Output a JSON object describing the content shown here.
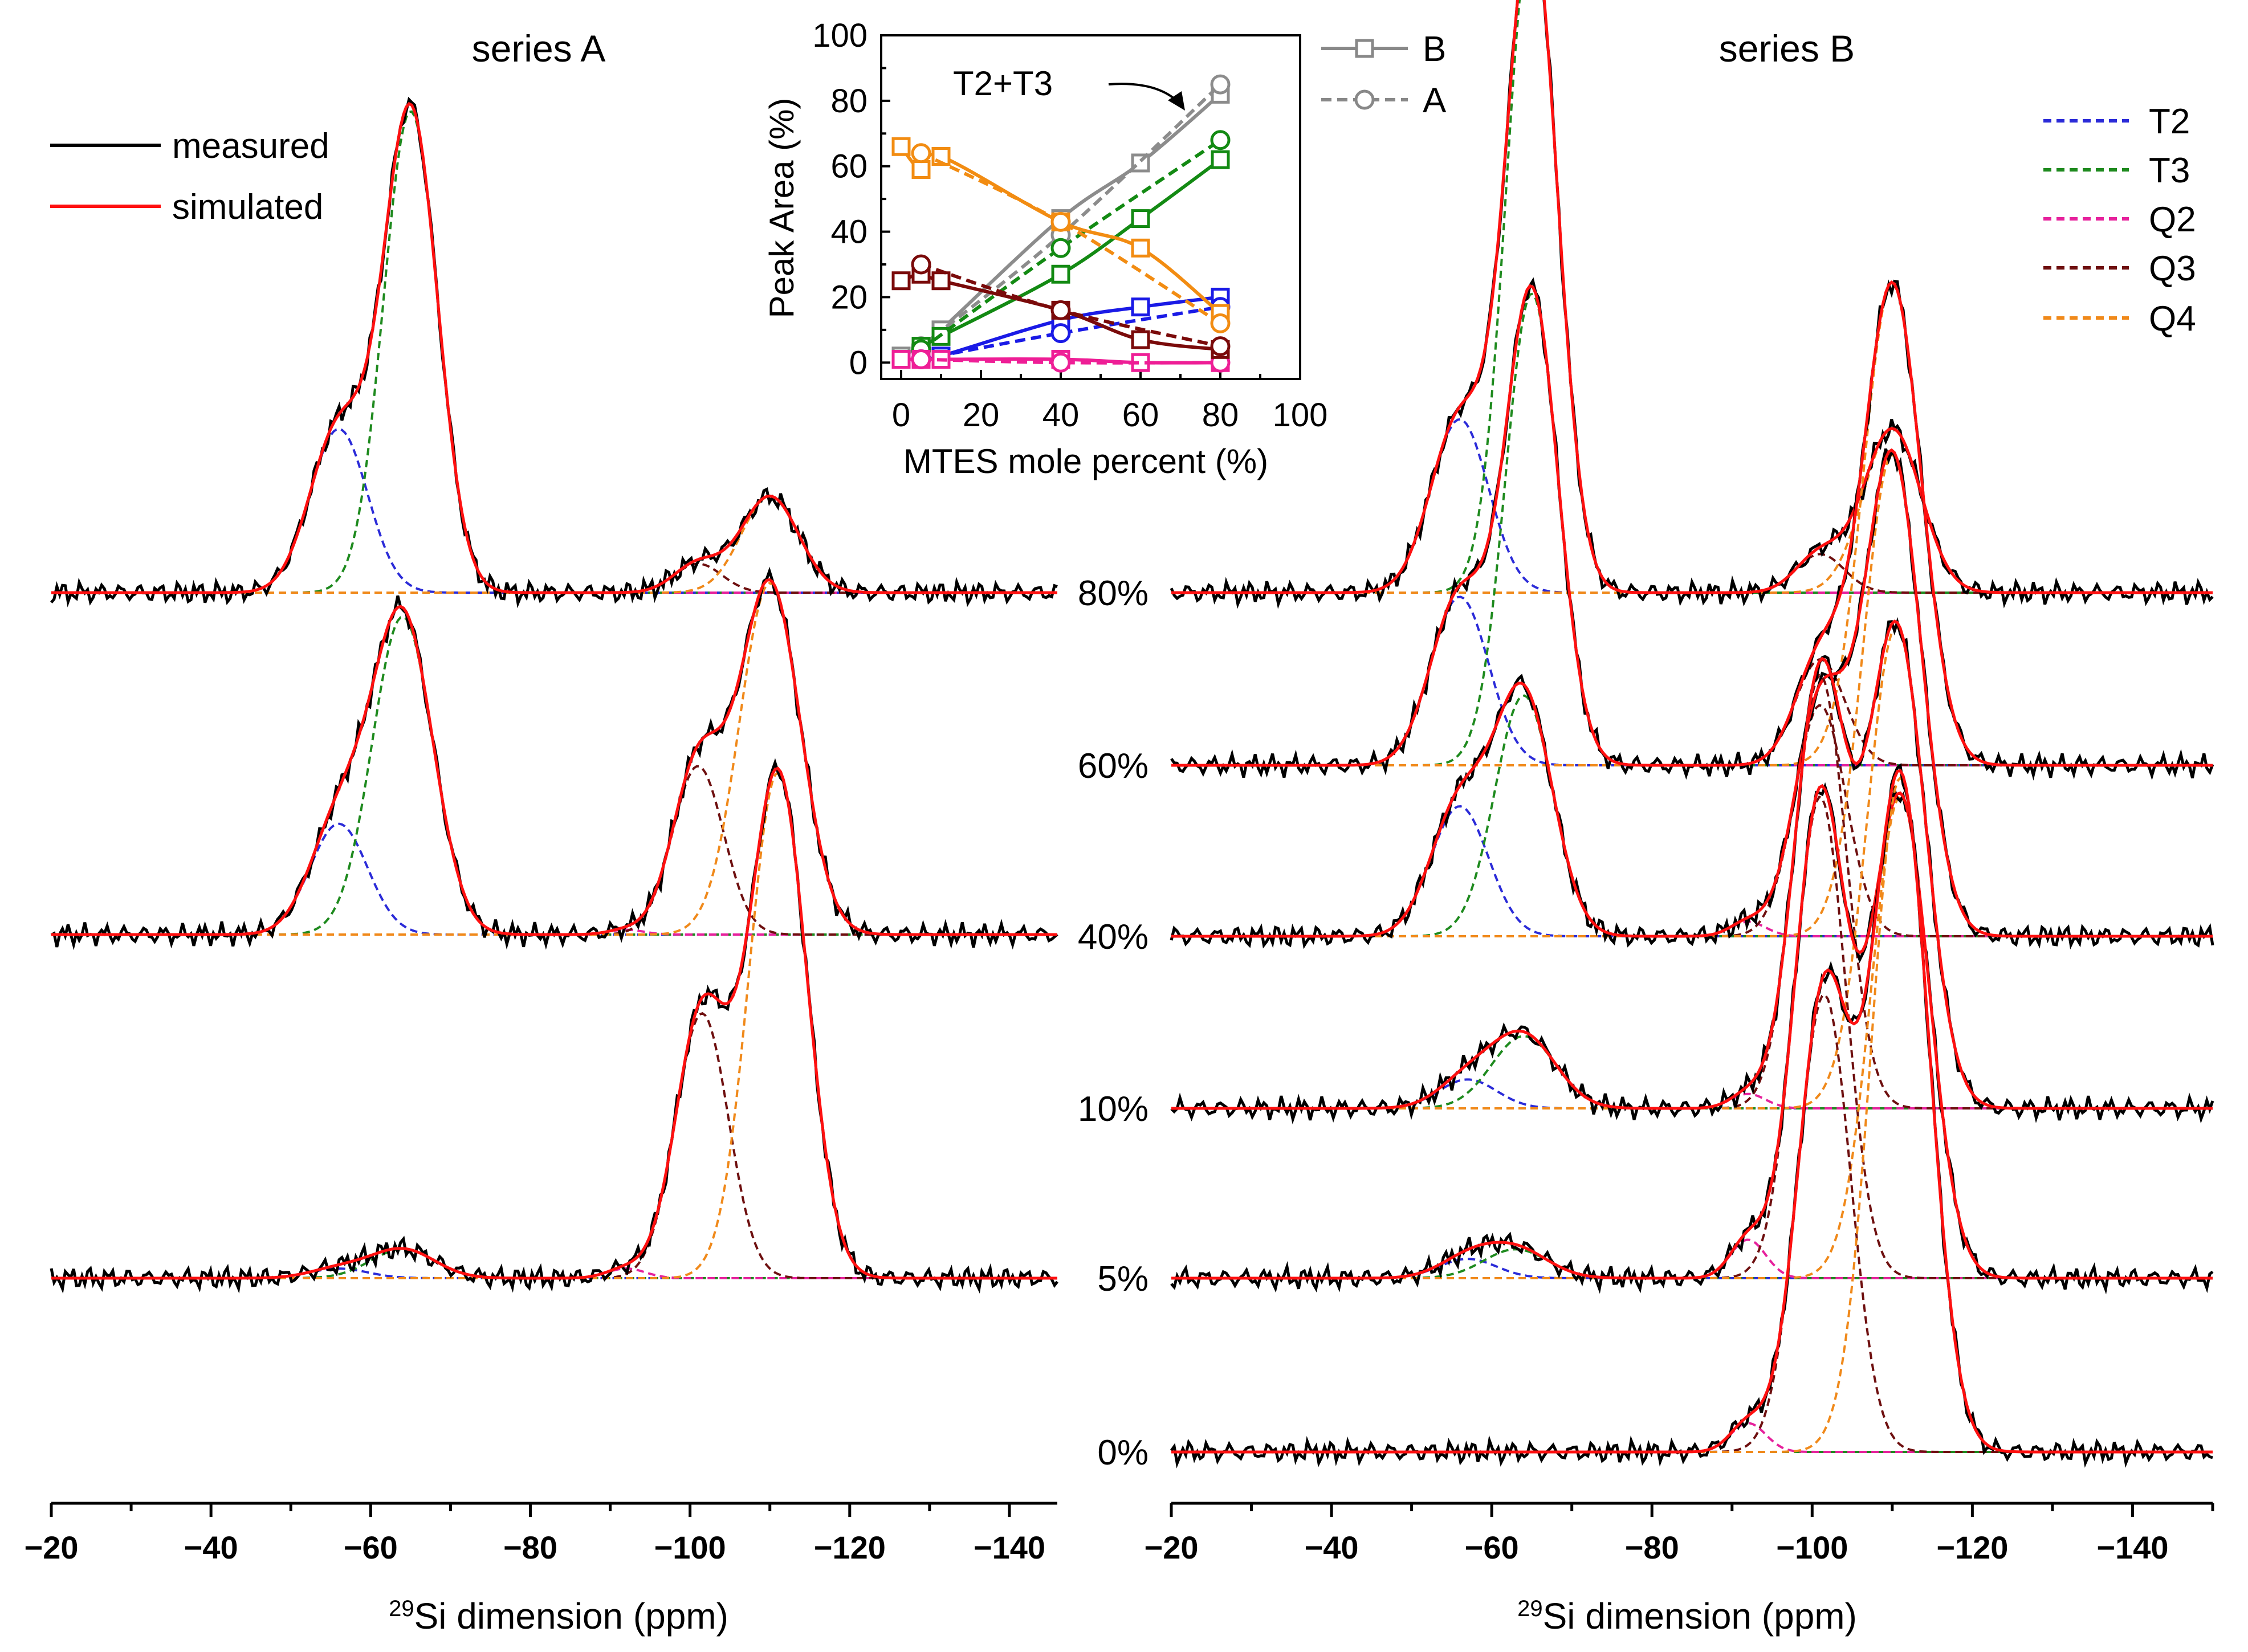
{
  "chart_data": {
    "type": "line",
    "figure_kind": "stacked 29Si NMR spectra with fitted components, plus inset of peak areas",
    "panels": [
      {
        "title": "series A",
        "xlabel_sup": "29",
        "xlabel": "Si dimension (ppm)",
        "xlim": [
          -20,
          -146
        ],
        "xticks": [
          -20,
          -40,
          -60,
          -80,
          -100,
          -120,
          -140
        ],
        "xtick_labels": [
          "−20",
          "−40",
          "−60",
          "−80",
          "−100",
          "−120",
          "−140"
        ],
        "spectra": [
          {
            "label": "80%",
            "components": {
              "T2": [
                -56,
                3.6,
                0.34
              ],
              "T3": [
                -65,
                3.4,
                1.0
              ],
              "Q2": [
                -92,
                2.2,
                0.0
              ],
              "Q3": [
                -101,
                3.0,
                0.06
              ],
              "Q4": [
                -110,
                3.6,
                0.2
              ]
            }
          },
          {
            "label": "40%",
            "components": {
              "T2": [
                -56,
                3.6,
                0.23
              ],
              "T3": [
                -64,
                3.8,
                0.66
              ],
              "Q2": [
                -92,
                2.2,
                0.01
              ],
              "Q3": [
                -101,
                3.2,
                0.35
              ],
              "Q4": [
                -110,
                3.8,
                0.73
              ]
            }
          },
          {
            "label": "5%",
            "components": {
              "T2": [
                -56,
                3.6,
                0.02
              ],
              "T3": [
                -64,
                4.0,
                0.06
              ],
              "Q2": [
                -92,
                2.4,
                0.02
              ],
              "Q3": [
                -101.5,
                3.3,
                0.55
              ],
              "Q4": [
                -111,
                3.6,
                1.05
              ]
            }
          }
        ]
      },
      {
        "title": "series B",
        "xlabel_sup": "29",
        "xlabel": "Si dimension (ppm)",
        "xlim": [
          -20,
          -150
        ],
        "xticks": [
          -20,
          -40,
          -60,
          -80,
          -100,
          -120,
          -140
        ],
        "xtick_labels": [
          "−20",
          "−40",
          "−60",
          "−80",
          "−100",
          "−120",
          "−140"
        ],
        "spectra": [
          {
            "label": "80%",
            "components": {
              "T2": [
                -56,
                3.6,
                0.36
              ],
              "T3": [
                -65,
                3.2,
                1.38
              ],
              "Q2": [
                -92,
                2.2,
                0.0
              ],
              "Q3": [
                -101,
                3.0,
                0.08
              ],
              "Q4": [
                -110,
                3.6,
                0.34
              ]
            }
          },
          {
            "label": "60%",
            "components": {
              "T2": [
                -56,
                3.6,
                0.35
              ],
              "T3": [
                -65,
                3.3,
                0.98
              ],
              "Q2": [
                -92,
                2.2,
                0.0
              ],
              "Q3": [
                -101,
                3.1,
                0.22
              ],
              "Q4": [
                -110,
                3.6,
                1.0
              ]
            }
          },
          {
            "label": "40%",
            "components": {
              "T2": [
                -56,
                3.6,
                0.27
              ],
              "T3": [
                -64,
                3.6,
                0.5
              ],
              "Q2": [
                -92,
                2.2,
                0.03
              ],
              "Q3": [
                -101,
                3.2,
                0.48
              ],
              "Q4": [
                -110,
                3.6,
                1.0
              ]
            }
          },
          {
            "label": "10%",
            "components": {
              "T2": [
                -57,
                3.6,
                0.06
              ],
              "T3": [
                -64,
                4.0,
                0.15
              ],
              "Q2": [
                -92,
                2.2,
                0.03
              ],
              "Q3": [
                -101,
                3.2,
                0.9
              ],
              "Q4": [
                -110.5,
                3.6,
                1.0
              ]
            }
          },
          {
            "label": "5%",
            "components": {
              "T2": [
                -57,
                3.6,
                0.04
              ],
              "T3": [
                -63,
                4.0,
                0.06
              ],
              "Q2": [
                -92,
                2.2,
                0.08
              ],
              "Q3": [
                -101,
                3.2,
                1.0
              ],
              "Q4": [
                -111,
                3.6,
                1.0
              ]
            }
          },
          {
            "label": "0%",
            "components": {
              "T2": [
                -57,
                3.6,
                0.0
              ],
              "T3": [
                -64,
                4.0,
                0.0
              ],
              "Q2": [
                -92,
                2.2,
                0.06
              ],
              "Q3": [
                -101.5,
                3.3,
                0.95
              ],
              "Q4": [
                -111,
                3.6,
                1.4
              ]
            }
          }
        ]
      }
    ],
    "inset": {
      "xlabel": "MTES mole percent (%)",
      "ylabel": "Peak Area (%)",
      "xlim": [
        -5,
        100
      ],
      "ylim": [
        -5,
        100
      ],
      "xticks": [
        0,
        20,
        40,
        60,
        80,
        100
      ],
      "yticks": [
        0,
        20,
        40,
        60,
        80,
        100
      ],
      "annotation": "T2+T3",
      "series": [
        {
          "name": "T2+T3",
          "color": "#8c8c8c",
          "B": {
            "x": [
              0,
              5,
              10,
              40,
              60,
              80
            ],
            "y": [
              2,
              5,
              10,
              44,
              61,
              82
            ]
          },
          "A": {
            "x": [
              5,
              40,
              80
            ],
            "y": [
              5,
              39,
              85
            ]
          }
        },
        {
          "name": "T3",
          "color": "#138a13",
          "B": {
            "x": [
              5,
              10,
              40,
              60,
              80
            ],
            "y": [
              5,
              8,
              27,
              44,
              62
            ]
          },
          "A": {
            "x": [
              5,
              40,
              80
            ],
            "y": [
              4,
              35,
              68
            ]
          }
        },
        {
          "name": "T2",
          "color": "#1a1ae6",
          "B": {
            "x": [
              5,
              10,
              40,
              60,
              80
            ],
            "y": [
              1,
              2,
              13,
              17,
              20
            ]
          },
          "A": {
            "x": [
              5,
              40,
              80
            ],
            "y": [
              1,
              9,
              17
            ]
          }
        },
        {
          "name": "Q2",
          "color": "#ee1e96",
          "B": {
            "x": [
              0,
              5,
              10,
              40,
              60,
              80
            ],
            "y": [
              1,
              1,
              1,
              1,
              0,
              0
            ]
          },
          "A": {
            "x": [
              5,
              40,
              80
            ],
            "y": [
              1,
              0,
              0
            ]
          }
        },
        {
          "name": "Q3",
          "color": "#7a0a0a",
          "B": {
            "x": [
              0,
              5,
              10,
              40,
              60,
              80
            ],
            "y": [
              25,
              27,
              25,
              16,
              7,
              4
            ]
          },
          "A": {
            "x": [
              5,
              40,
              80
            ],
            "y": [
              30,
              16,
              5
            ]
          }
        },
        {
          "name": "Q4",
          "color": "#f28c12",
          "B": {
            "x": [
              0,
              5,
              10,
              40,
              60,
              80
            ],
            "y": [
              66,
              59,
              63,
              43,
              35,
              15
            ]
          },
          "A": {
            "x": [
              5,
              40,
              80
            ],
            "y": [
              64,
              43,
              12
            ]
          }
        }
      ]
    }
  },
  "legend_curves": [
    {
      "label": "measured",
      "color": "#000000"
    },
    {
      "label": "simulated",
      "color": "#ff1010"
    }
  ],
  "legend_components": [
    {
      "label": "T2",
      "color": "#2b2bd8"
    },
    {
      "label": "T3",
      "color": "#1e8a1e"
    },
    {
      "label": "Q2",
      "color": "#e6219c"
    },
    {
      "label": "Q3",
      "color": "#6e0f0f"
    },
    {
      "label": "Q4",
      "color": "#f0891a"
    }
  ],
  "legend_series": [
    {
      "label": "B",
      "style": "solid-square"
    },
    {
      "label": "A",
      "style": "dashed-circle"
    }
  ]
}
